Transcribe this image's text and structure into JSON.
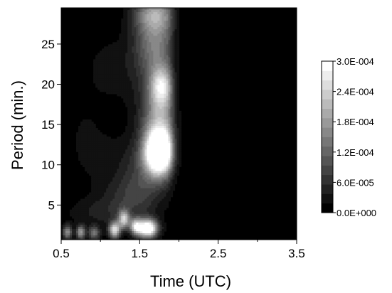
{
  "chart_data": {
    "type": "heatmap",
    "title": "",
    "xlabel": "Time (UTC)",
    "ylabel": "Period (min.)",
    "xlim": [
      0.5,
      3.5
    ],
    "ylim": [
      0.7,
      29.5
    ],
    "xticks": [
      0.5,
      1.5,
      2.5,
      3.5
    ],
    "xtick_labels": [
      "0.5",
      "1.5",
      "2.5",
      "3.5"
    ],
    "yticks": [
      5,
      10,
      15,
      20,
      25
    ],
    "ytick_labels": [
      "5",
      "10",
      "15",
      "20",
      "25"
    ],
    "colormap": "grayscale (black = low, white = high)",
    "colorbar": {
      "min": 0.0,
      "max": 0.0003,
      "levels": 16,
      "tick_values": [
        0.0,
        6e-05,
        0.00012,
        0.00018,
        0.00024,
        0.0003
      ],
      "tick_labels": [
        "0.0E+000",
        "6.0E-005",
        "1.2E-004",
        "1.8E-004",
        "2.4E-004",
        "3.0E-004"
      ]
    },
    "features": [
      {
        "name": "power-maximum",
        "time": 1.75,
        "period": 11.5,
        "value": 0.0003
      },
      {
        "name": "upper-plume",
        "time": 1.78,
        "period": 20.0,
        "value": 0.00022
      },
      {
        "name": "top-plume",
        "time": 1.72,
        "period": 28.0,
        "value": 0.00018
      },
      {
        "name": "low-period-band",
        "time": 1.6,
        "period": 1.5,
        "value": 0.0003
      }
    ]
  }
}
